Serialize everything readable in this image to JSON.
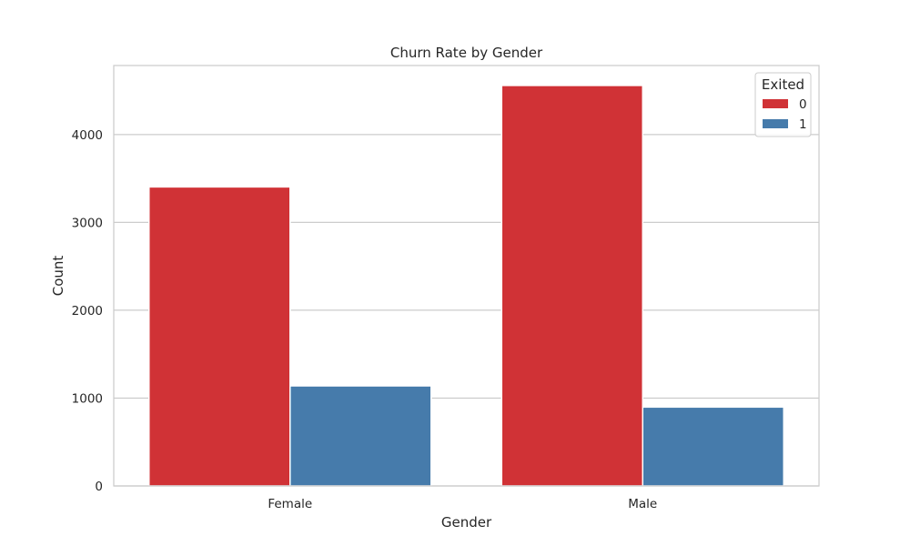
{
  "chart_data": {
    "type": "bar",
    "title": "Churn Rate by Gender",
    "xlabel": "Gender",
    "ylabel": "Count",
    "categories": [
      "Female",
      "Male"
    ],
    "series": [
      {
        "name": "0",
        "values": [
          3404,
          4559
        ],
        "color": "#d03236"
      },
      {
        "name": "1",
        "values": [
          1139,
          898
        ],
        "color": "#467bab"
      }
    ],
    "yticks": [
      0,
      1000,
      2000,
      3000,
      4000
    ],
    "ylim": [
      0,
      4786
    ],
    "grid": true,
    "legend": {
      "title": "Exited",
      "position": "top-right"
    }
  }
}
